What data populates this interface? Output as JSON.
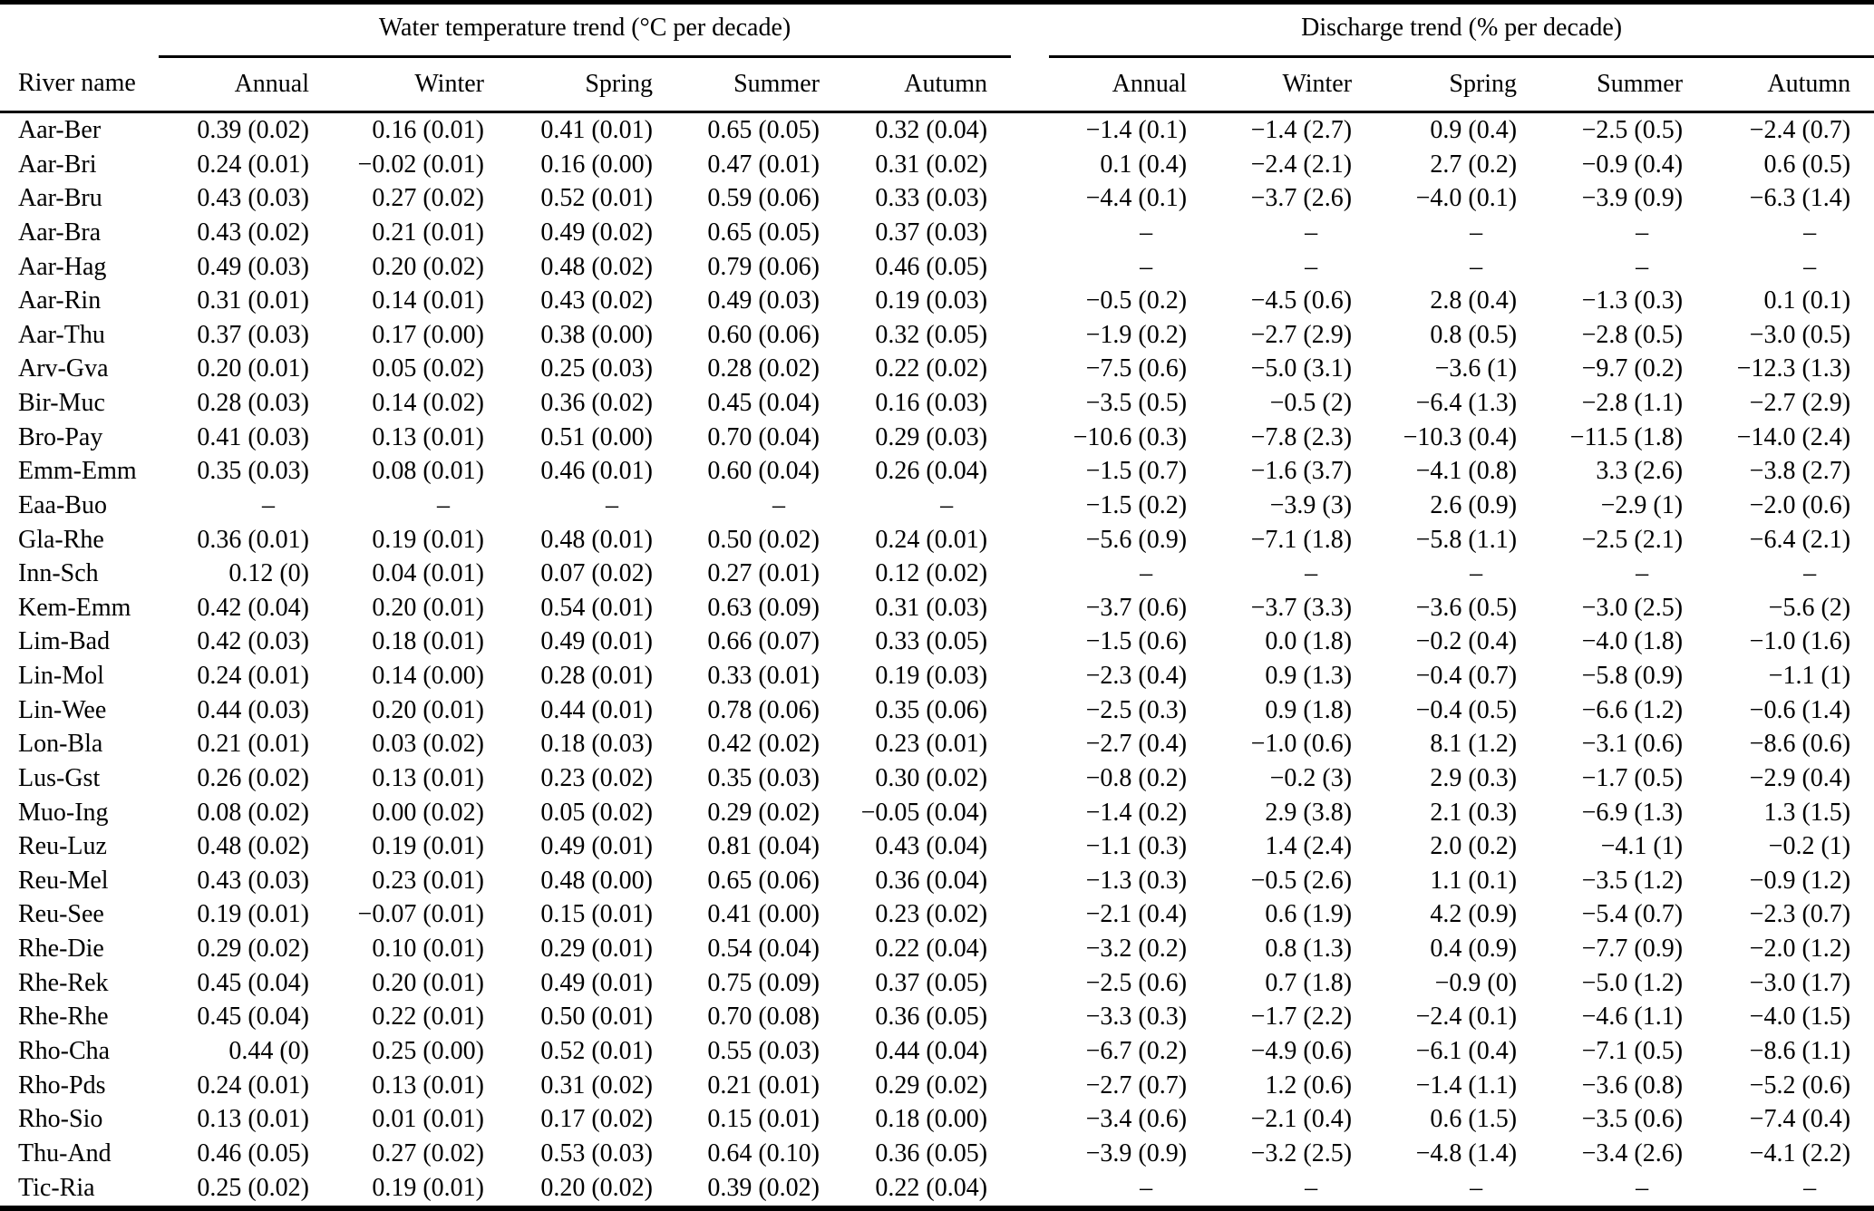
{
  "page": {
    "background_color": "#ffffff",
    "text_color": "#000000"
  },
  "table": {
    "river_header": "River name",
    "season_keys": [
      "annual",
      "winter",
      "spring",
      "summer",
      "autumn"
    ],
    "column_groups": [
      {
        "label": "Water temperature trend (°C per decade)",
        "season_headers": [
          "Annual",
          "Winter",
          "Spring",
          "Summer",
          "Autumn"
        ]
      },
      {
        "label": "Discharge trend (% per decade)",
        "season_headers": [
          "Annual",
          "Winter",
          "Spring",
          "Summer",
          "Autumn"
        ]
      }
    ],
    "missing_value_symbol": "–",
    "rows": [
      {
        "river": "Aar-Ber",
        "temperature": [
          "0.39 (0.02)",
          "0.16 (0.01)",
          "0.41 (0.01)",
          "0.65 (0.05)",
          "0.32 (0.04)"
        ],
        "discharge": [
          "−1.4 (0.1)",
          "−1.4 (2.7)",
          "0.9 (0.4)",
          "−2.5 (0.5)",
          "−2.4 (0.7)"
        ]
      },
      {
        "river": "Aar-Bri",
        "temperature": [
          "0.24 (0.01)",
          "−0.02 (0.01)",
          "0.16 (0.00)",
          "0.47 (0.01)",
          "0.31 (0.02)"
        ],
        "discharge": [
          "0.1 (0.4)",
          "−2.4 (2.1)",
          "2.7 (0.2)",
          "−0.9 (0.4)",
          "0.6 (0.5)"
        ]
      },
      {
        "river": "Aar-Bru",
        "temperature": [
          "0.43 (0.03)",
          "0.27 (0.02)",
          "0.52 (0.01)",
          "0.59 (0.06)",
          "0.33 (0.03)"
        ],
        "discharge": [
          "−4.4 (0.1)",
          "−3.7 (2.6)",
          "−4.0 (0.1)",
          "−3.9 (0.9)",
          "−6.3 (1.4)"
        ]
      },
      {
        "river": "Aar-Bra",
        "temperature": [
          "0.43 (0.02)",
          "0.21 (0.01)",
          "0.49 (0.02)",
          "0.65 (0.05)",
          "0.37 (0.03)"
        ],
        "discharge": [
          "–",
          "–",
          "–",
          "–",
          "–"
        ]
      },
      {
        "river": "Aar-Hag",
        "temperature": [
          "0.49 (0.03)",
          "0.20 (0.02)",
          "0.48 (0.02)",
          "0.79 (0.06)",
          "0.46 (0.05)"
        ],
        "discharge": [
          "–",
          "–",
          "–",
          "–",
          "–"
        ]
      },
      {
        "river": "Aar-Rin",
        "temperature": [
          "0.31 (0.01)",
          "0.14 (0.01)",
          "0.43 (0.02)",
          "0.49 (0.03)",
          "0.19 (0.03)"
        ],
        "discharge": [
          "−0.5 (0.2)",
          "−4.5 (0.6)",
          "2.8 (0.4)",
          "−1.3 (0.3)",
          "0.1 (0.1)"
        ]
      },
      {
        "river": "Aar-Thu",
        "temperature": [
          "0.37 (0.03)",
          "0.17 (0.00)",
          "0.38 (0.00)",
          "0.60 (0.06)",
          "0.32 (0.05)"
        ],
        "discharge": [
          "−1.9 (0.2)",
          "−2.7 (2.9)",
          "0.8 (0.5)",
          "−2.8 (0.5)",
          "−3.0 (0.5)"
        ]
      },
      {
        "river": "Arv-Gva",
        "temperature": [
          "0.20 (0.01)",
          "0.05 (0.02)",
          "0.25 (0.03)",
          "0.28 (0.02)",
          "0.22 (0.02)"
        ],
        "discharge": [
          "−7.5 (0.6)",
          "−5.0 (3.1)",
          "−3.6 (1)",
          "−9.7 (0.2)",
          "−12.3 (1.3)"
        ]
      },
      {
        "river": "Bir-Muc",
        "temperature": [
          "0.28 (0.03)",
          "0.14 (0.02)",
          "0.36 (0.02)",
          "0.45 (0.04)",
          "0.16 (0.03)"
        ],
        "discharge": [
          "−3.5 (0.5)",
          "−0.5 (2)",
          "−6.4 (1.3)",
          "−2.8 (1.1)",
          "−2.7 (2.9)"
        ]
      },
      {
        "river": "Bro-Pay",
        "temperature": [
          "0.41 (0.03)",
          "0.13 (0.01)",
          "0.51 (0.00)",
          "0.70 (0.04)",
          "0.29 (0.03)"
        ],
        "discharge": [
          "−10.6 (0.3)",
          "−7.8 (2.3)",
          "−10.3 (0.4)",
          "−11.5 (1.8)",
          "−14.0 (2.4)"
        ]
      },
      {
        "river": "Emm-Emm",
        "temperature": [
          "0.35 (0.03)",
          "0.08 (0.01)",
          "0.46 (0.01)",
          "0.60 (0.04)",
          "0.26 (0.04)"
        ],
        "discharge": [
          "−1.5 (0.7)",
          "−1.6 (3.7)",
          "−4.1 (0.8)",
          "3.3 (2.6)",
          "−3.8 (2.7)"
        ]
      },
      {
        "river": "Eaa-Buo",
        "temperature": [
          "–",
          "–",
          "–",
          "–",
          "–"
        ],
        "discharge": [
          "−1.5 (0.2)",
          "−3.9 (3)",
          "2.6 (0.9)",
          "−2.9 (1)",
          "−2.0 (0.6)"
        ]
      },
      {
        "river": "Gla-Rhe",
        "temperature": [
          "0.36 (0.01)",
          "0.19 (0.01)",
          "0.48 (0.01)",
          "0.50 (0.02)",
          "0.24 (0.01)"
        ],
        "discharge": [
          "−5.6 (0.9)",
          "−7.1 (1.8)",
          "−5.8 (1.1)",
          "−2.5 (2.1)",
          "−6.4 (2.1)"
        ]
      },
      {
        "river": "Inn-Sch",
        "temperature": [
          "0.12 (0)",
          "0.04 (0.01)",
          "0.07 (0.02)",
          "0.27 (0.01)",
          "0.12 (0.02)"
        ],
        "discharge": [
          "–",
          "–",
          "–",
          "–",
          "–"
        ]
      },
      {
        "river": "Kem-Emm",
        "temperature": [
          "0.42 (0.04)",
          "0.20 (0.01)",
          "0.54 (0.01)",
          "0.63 (0.09)",
          "0.31 (0.03)"
        ],
        "discharge": [
          "−3.7 (0.6)",
          "−3.7 (3.3)",
          "−3.6 (0.5)",
          "−3.0 (2.5)",
          "−5.6 (2)"
        ]
      },
      {
        "river": "Lim-Bad",
        "temperature": [
          "0.42 (0.03)",
          "0.18 (0.01)",
          "0.49 (0.01)",
          "0.66 (0.07)",
          "0.33 (0.05)"
        ],
        "discharge": [
          "−1.5 (0.6)",
          "0.0 (1.8)",
          "−0.2 (0.4)",
          "−4.0 (1.8)",
          "−1.0 (1.6)"
        ]
      },
      {
        "river": "Lin-Mol",
        "temperature": [
          "0.24 (0.01)",
          "0.14 (0.00)",
          "0.28 (0.01)",
          "0.33 (0.01)",
          "0.19 (0.03)"
        ],
        "discharge": [
          "−2.3 (0.4)",
          "0.9 (1.3)",
          "−0.4 (0.7)",
          "−5.8 (0.9)",
          "−1.1 (1)"
        ]
      },
      {
        "river": "Lin-Wee",
        "temperature": [
          "0.44 (0.03)",
          "0.20 (0.01)",
          "0.44 (0.01)",
          "0.78 (0.06)",
          "0.35 (0.06)"
        ],
        "discharge": [
          "−2.5 (0.3)",
          "0.9 (1.8)",
          "−0.4 (0.5)",
          "−6.6 (1.2)",
          "−0.6 (1.4)"
        ]
      },
      {
        "river": "Lon-Bla",
        "temperature": [
          "0.21 (0.01)",
          "0.03 (0.02)",
          "0.18 (0.03)",
          "0.42 (0.02)",
          "0.23 (0.01)"
        ],
        "discharge": [
          "−2.7 (0.4)",
          "−1.0 (0.6)",
          "8.1 (1.2)",
          "−3.1 (0.6)",
          "−8.6 (0.6)"
        ]
      },
      {
        "river": "Lus-Gst",
        "temperature": [
          "0.26 (0.02)",
          "0.13 (0.01)",
          "0.23 (0.02)",
          "0.35 (0.03)",
          "0.30 (0.02)"
        ],
        "discharge": [
          "−0.8 (0.2)",
          "−0.2 (3)",
          "2.9 (0.3)",
          "−1.7 (0.5)",
          "−2.9 (0.4)"
        ]
      },
      {
        "river": "Muo-Ing",
        "temperature": [
          "0.08 (0.02)",
          "0.00 (0.02)",
          "0.05 (0.02)",
          "0.29 (0.02)",
          "−0.05 (0.04)"
        ],
        "discharge": [
          "−1.4 (0.2)",
          "2.9 (3.8)",
          "2.1 (0.3)",
          "−6.9 (1.3)",
          "1.3 (1.5)"
        ]
      },
      {
        "river": "Reu-Luz",
        "temperature": [
          "0.48 (0.02)",
          "0.19 (0.01)",
          "0.49 (0.01)",
          "0.81 (0.04)",
          "0.43 (0.04)"
        ],
        "discharge": [
          "−1.1 (0.3)",
          "1.4 (2.4)",
          "2.0 (0.2)",
          "−4.1 (1)",
          "−0.2 (1)"
        ]
      },
      {
        "river": "Reu-Mel",
        "temperature": [
          "0.43 (0.03)",
          "0.23 (0.01)",
          "0.48 (0.00)",
          "0.65 (0.06)",
          "0.36 (0.04)"
        ],
        "discharge": [
          "−1.3 (0.3)",
          "−0.5 (2.6)",
          "1.1 (0.1)",
          "−3.5 (1.2)",
          "−0.9 (1.2)"
        ]
      },
      {
        "river": "Reu-See",
        "temperature": [
          "0.19 (0.01)",
          "−0.07 (0.01)",
          "0.15 (0.01)",
          "0.41 (0.00)",
          "0.23 (0.02)"
        ],
        "discharge": [
          "−2.1 (0.4)",
          "0.6 (1.9)",
          "4.2 (0.9)",
          "−5.4 (0.7)",
          "−2.3 (0.7)"
        ]
      },
      {
        "river": "Rhe-Die",
        "temperature": [
          "0.29 (0.02)",
          "0.10 (0.01)",
          "0.29 (0.01)",
          "0.54 (0.04)",
          "0.22 (0.04)"
        ],
        "discharge": [
          "−3.2 (0.2)",
          "0.8 (1.3)",
          "0.4 (0.9)",
          "−7.7 (0.9)",
          "−2.0 (1.2)"
        ]
      },
      {
        "river": "Rhe-Rek",
        "temperature": [
          "0.45 (0.04)",
          "0.20 (0.01)",
          "0.49 (0.01)",
          "0.75 (0.09)",
          "0.37 (0.05)"
        ],
        "discharge": [
          "−2.5 (0.6)",
          "0.7 (1.8)",
          "−0.9 (0)",
          "−5.0 (1.2)",
          "−3.0 (1.7)"
        ]
      },
      {
        "river": "Rhe-Rhe",
        "temperature": [
          "0.45 (0.04)",
          "0.22 (0.01)",
          "0.50 (0.01)",
          "0.70 (0.08)",
          "0.36 (0.05)"
        ],
        "discharge": [
          "−3.3 (0.3)",
          "−1.7 (2.2)",
          "−2.4 (0.1)",
          "−4.6 (1.1)",
          "−4.0 (1.5)"
        ]
      },
      {
        "river": "Rho-Cha",
        "temperature": [
          "0.44 (0)",
          "0.25 (0.00)",
          "0.52 (0.01)",
          "0.55 (0.03)",
          "0.44 (0.04)"
        ],
        "discharge": [
          "−6.7 (0.2)",
          "−4.9 (0.6)",
          "−6.1 (0.4)",
          "−7.1 (0.5)",
          "−8.6 (1.1)"
        ]
      },
      {
        "river": "Rho-Pds",
        "temperature": [
          "0.24 (0.01)",
          "0.13 (0.01)",
          "0.31 (0.02)",
          "0.21 (0.01)",
          "0.29 (0.02)"
        ],
        "discharge": [
          "−2.7 (0.7)",
          "1.2 (0.6)",
          "−1.4 (1.1)",
          "−3.6 (0.8)",
          "−5.2 (0.6)"
        ]
      },
      {
        "river": "Rho-Sio",
        "temperature": [
          "0.13 (0.01)",
          "0.01 (0.01)",
          "0.17 (0.02)",
          "0.15 (0.01)",
          "0.18 (0.00)"
        ],
        "discharge": [
          "−3.4 (0.6)",
          "−2.1 (0.4)",
          "0.6 (1.5)",
          "−3.5 (0.6)",
          "−7.4 (0.4)"
        ]
      },
      {
        "river": "Thu-And",
        "temperature": [
          "0.46 (0.05)",
          "0.27 (0.02)",
          "0.53 (0.03)",
          "0.64 (0.10)",
          "0.36 (0.05)"
        ],
        "discharge": [
          "−3.9 (0.9)",
          "−3.2 (2.5)",
          "−4.8 (1.4)",
          "−3.4 (2.6)",
          "−4.1 (2.2)"
        ]
      },
      {
        "river": "Tic-Ria",
        "temperature": [
          "0.25 (0.02)",
          "0.19 (0.01)",
          "0.20 (0.02)",
          "0.39 (0.02)",
          "0.22 (0.04)"
        ],
        "discharge": [
          "–",
          "–",
          "–",
          "–",
          "–"
        ]
      }
    ]
  }
}
